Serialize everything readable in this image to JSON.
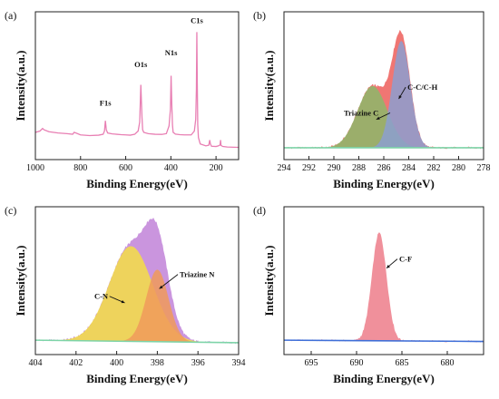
{
  "chart_data": [
    {
      "panel_label": "(a)",
      "type": "line",
      "xlabel": "Binding Energy(eV)",
      "ylabel": "Intensity(a.u.)",
      "xlim": [
        1000,
        100
      ],
      "xticks": [
        1000,
        800,
        600,
        400,
        200
      ],
      "ylim": [
        0,
        100
      ],
      "colors": {
        "survey": "#e87fb3"
      },
      "series": [
        {
          "x": [
            1000,
            980,
            968,
            962,
            940,
            900,
            860,
            835,
            828,
            800,
            760,
            720,
            700,
            694,
            690,
            686,
            680,
            660,
            620,
            600,
            580,
            560,
            545,
            538,
            533,
            528,
            525,
            520,
            500,
            470,
            440,
            420,
            408,
            402,
            399,
            396,
            393,
            390,
            380,
            360,
            340,
            310,
            296,
            290,
            287,
            285,
            283,
            281,
            278,
            270,
            245,
            232,
            228,
            225,
            220,
            200,
            190,
            182,
            180,
            178,
            170,
            150,
            120,
            100
          ],
          "y": [
            12,
            13,
            15,
            14,
            12.5,
            11.5,
            11,
            10.5,
            12,
            10,
            9.5,
            9.8,
            10.5,
            13,
            21,
            14,
            11.5,
            10.8,
            10.2,
            10,
            9.8,
            10.5,
            13,
            20,
            49,
            24,
            14,
            12,
            11,
            10.5,
            10.4,
            11,
            17,
            30,
            56,
            34,
            18,
            12,
            10.6,
            10.2,
            10,
            10,
            13,
            22,
            45,
            90,
            50,
            18,
            8,
            3,
            1.5,
            2,
            6,
            3,
            1.2,
            1,
            1.5,
            2.2,
            6,
            1.8,
            1,
            0.6,
            0.4,
            0.3
          ]
        }
      ],
      "annotations": [
        {
          "text": "F1s",
          "x": 690,
          "y": 30
        },
        {
          "text": "O1s",
          "x": 533,
          "y": 60
        },
        {
          "text": "N1s",
          "x": 399,
          "y": 69
        },
        {
          "text": "C1s",
          "x": 285,
          "y": 94
        }
      ]
    },
    {
      "panel_label": "(b)",
      "type": "area",
      "xlabel": "Binding Energy(eV)",
      "ylabel": "Intensity(a.u.)",
      "xlim": [
        294,
        278
      ],
      "xticks": [
        294,
        292,
        290,
        288,
        286,
        284,
        282,
        280,
        278
      ],
      "ylim": [
        0,
        100
      ],
      "baseline": [
        [
          294,
          0
        ],
        [
          278,
          0
        ]
      ],
      "colors": {
        "envelope": "#ef6f6b",
        "triazine_c": "#8cb86a",
        "cc_ch": "#8c9fd0",
        "baseline": "#7dd4a8"
      },
      "peaks": [
        {
          "center": 286.9,
          "height": 48,
          "fwhm": 2.8
        },
        {
          "center": 284.6,
          "height": 83,
          "fwhm": 1.7
        }
      ],
      "annotations": [
        {
          "text": "Triazine C",
          "label_x": 289.2,
          "label_y": 25,
          "arrow_to": [
            286.6,
            22
          ]
        },
        {
          "text": "C-C/C-H",
          "label_x": 284.1,
          "label_y": 45,
          "arrow_to": [
            284.8,
            38
          ]
        }
      ]
    },
    {
      "panel_label": "(c)",
      "type": "area",
      "xlabel": "Binding Energy(eV)",
      "ylabel": "Intensity(a.u.)",
      "xlim": [
        404,
        394
      ],
      "xticks": [
        404,
        402,
        400,
        398,
        396,
        394
      ],
      "ylim": [
        0,
        100
      ],
      "baseline": [
        [
          404,
          2
        ],
        [
          394,
          0
        ]
      ],
      "colors": {
        "envelope": "#c78fdc",
        "cn": "#f5de45",
        "triazine_n": "#f09a5a",
        "baseline": "#7dd4a8"
      },
      "peaks": [
        {
          "center": 399.3,
          "height": 74,
          "fwhm": 2.5
        },
        {
          "center": 398.0,
          "height": 56,
          "fwhm": 1.3
        }
      ],
      "annotations": [
        {
          "text": "C-N",
          "label_x": 401.1,
          "label_y": 34,
          "arrow_to": [
            399.6,
            31
          ]
        },
        {
          "text": "Triazine N",
          "label_x": 396.9,
          "label_y": 51,
          "arrow_to": [
            397.9,
            42
          ]
        }
      ]
    },
    {
      "panel_label": "(d)",
      "type": "area",
      "xlabel": "Binding Energy(eV)",
      "ylabel": "Intensity(a.u.)",
      "xlim": [
        698,
        676
      ],
      "xticks": [
        695,
        690,
        685,
        680
      ],
      "ylim": [
        0,
        100
      ],
      "baseline": [
        [
          698,
          2
        ],
        [
          676,
          1
        ]
      ],
      "colors": {
        "peak": "#ef8a96",
        "baseline": "#3f6fd8"
      },
      "peaks": [
        {
          "center": 687.5,
          "height": 84,
          "fwhm": 1.9
        }
      ],
      "annotations": [
        {
          "text": "C-F",
          "label_x": 685.3,
          "label_y": 63,
          "arrow_to": [
            686.7,
            58
          ]
        }
      ]
    }
  ]
}
